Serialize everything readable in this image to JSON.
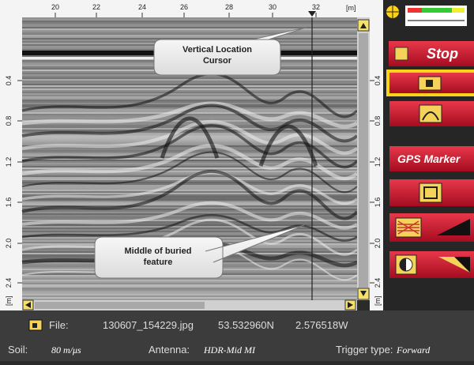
{
  "ruler_top": {
    "labels": [
      "20",
      "22",
      "24",
      "26",
      "28",
      "30",
      "32"
    ],
    "unit": "[m]"
  },
  "ruler_left": {
    "labels": [
      "0.4",
      "0.8",
      "1.2",
      "1.6",
      "2.0",
      "2.4"
    ],
    "unit": "[m]"
  },
  "ruler_right": {
    "labels": [
      "0.4",
      "0.8",
      "1.2",
      "1.6",
      "2.0",
      "2.4"
    ],
    "unit": "[m]"
  },
  "callouts": [
    {
      "label": "Vertical Location Cursor"
    },
    {
      "label": "Middle of buried feature"
    }
  ],
  "toolbar": {
    "stop": "Stop",
    "gps_marker": "GPS Marker"
  },
  "status": {
    "file_label": "File:",
    "file_name": "130607_154229.jpg",
    "latitude": "53.532960N",
    "longitude": "2.576518W",
    "soil_label": "Soil:",
    "soil_value": "80 m/μs",
    "antenna_label": "Antenna:",
    "antenna_value": "HDR-Mid MI",
    "trigger_label": "Trigger type:",
    "trigger_value": "Forward"
  }
}
